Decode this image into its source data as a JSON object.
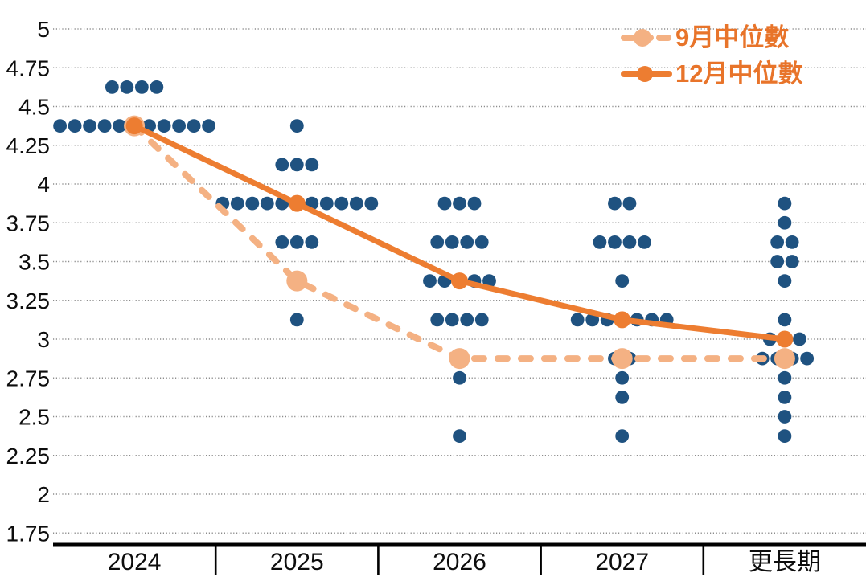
{
  "chart_data": {
    "type": "scatter",
    "subtype": "fomc-dot-plot",
    "title": "",
    "x_categories": [
      "2024",
      "2025",
      "2026",
      "2027",
      "更長期"
    ],
    "y_axis": {
      "min": 1.75,
      "max": 5,
      "tick_step": 0.25,
      "tick_labels": [
        "5",
        "4.75",
        "4.5",
        "4.25",
        "4",
        "3.75",
        "3.5",
        "3.25",
        "3",
        "2.75",
        "2.5",
        "2.25",
        "2",
        "1.75"
      ]
    },
    "grid": "dotted-horizontal",
    "legend_position": "top-right",
    "dots": [
      {
        "category": "2024",
        "counts": [
          [
            4.625,
            4
          ],
          [
            4.375,
            11
          ]
        ]
      },
      {
        "category": "2025",
        "counts": [
          [
            4.375,
            1
          ],
          [
            4.125,
            3
          ],
          [
            3.875,
            11
          ],
          [
            3.625,
            3
          ],
          [
            3.375,
            1
          ],
          [
            3.125,
            1
          ]
        ]
      },
      {
        "category": "2026",
        "counts": [
          [
            3.875,
            3
          ],
          [
            3.625,
            4
          ],
          [
            3.375,
            5
          ],
          [
            3.125,
            4
          ],
          [
            2.75,
            1
          ],
          [
            2.375,
            1
          ]
        ]
      },
      {
        "category": "2027",
        "counts": [
          [
            3.875,
            2
          ],
          [
            3.625,
            4
          ],
          [
            3.375,
            1
          ],
          [
            3.125,
            7
          ],
          [
            2.875,
            2
          ],
          [
            2.75,
            1
          ],
          [
            2.625,
            1
          ],
          [
            2.375,
            1
          ]
        ]
      },
      {
        "category": "更長期",
        "counts": [
          [
            3.875,
            1
          ],
          [
            3.75,
            1
          ],
          [
            3.625,
            2
          ],
          [
            3.5,
            2
          ],
          [
            3.375,
            1
          ],
          [
            3.125,
            1
          ],
          [
            3.0,
            3
          ],
          [
            2.875,
            4
          ],
          [
            2.75,
            1
          ],
          [
            2.625,
            1
          ],
          [
            2.5,
            1
          ],
          [
            2.375,
            1
          ]
        ]
      }
    ],
    "series": [
      {
        "name": "9月中位數",
        "type": "line-dashed",
        "color": "#F4B183",
        "values": [
          4.375,
          3.375,
          2.875,
          2.875,
          2.875
        ]
      },
      {
        "name": "12月中位數",
        "type": "line-solid",
        "color": "#ED7D31",
        "values": [
          4.375,
          3.875,
          3.375,
          3.125,
          3.0
        ]
      }
    ],
    "colors": {
      "dot": "#1F5280",
      "september_line": "#F4B183",
      "december_line": "#ED7D31",
      "legend_text": "#E8742A",
      "gridline": "#8C8C8C",
      "axis": "#000000"
    }
  }
}
